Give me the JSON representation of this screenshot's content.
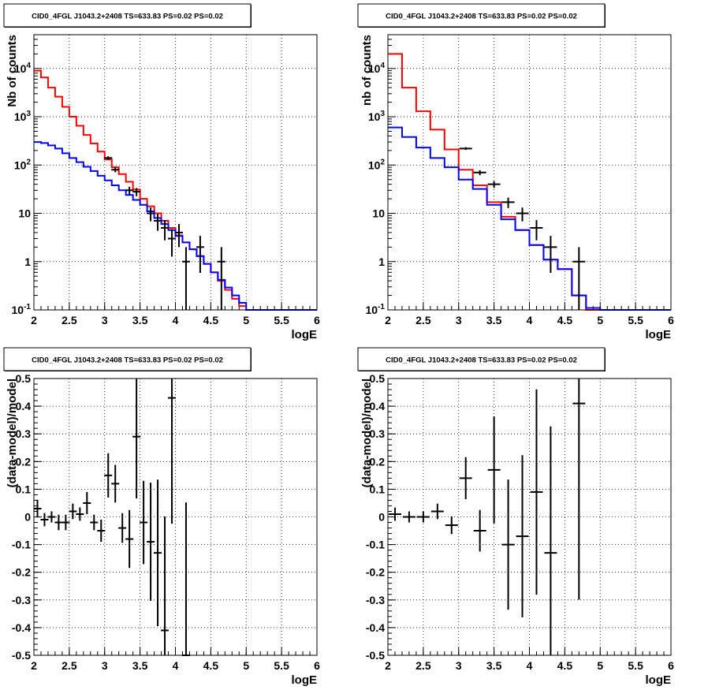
{
  "chart_data": [
    {
      "type": "line",
      "title": "CID0_4FGL J1043.2+2408 TS=633.83 PS=0.02 PS=0.02",
      "xlabel": "logE",
      "ylabel": "Nb of counts",
      "xlim": [
        2,
        6
      ],
      "ylim": [
        0.1,
        50000
      ],
      "yscale": "log",
      "grid": true,
      "xticks": [
        "2",
        "2.5",
        "3",
        "3.5",
        "4",
        "4.5",
        "5",
        "5.5",
        "6"
      ],
      "yticks": [
        "10^-1",
        "1",
        "10",
        "10^2",
        "10^3",
        "10^4"
      ],
      "series": [
        {
          "color": "#ff0000",
          "bin_edges": [
            2.0,
            2.1,
            2.2,
            2.3,
            2.4,
            2.5,
            2.6,
            2.7,
            2.8,
            2.9,
            3.0,
            3.1,
            3.2,
            3.3,
            3.4,
            3.5,
            3.6,
            3.7,
            3.8,
            3.9,
            4.0,
            4.1,
            4.2,
            4.3,
            4.4,
            4.5,
            4.6,
            4.7,
            4.8,
            4.9,
            5.0
          ],
          "values": [
            9000,
            6500,
            4000,
            2600,
            1600,
            1000,
            650,
            420,
            280,
            190,
            130,
            90,
            65,
            45,
            31,
            20,
            14,
            10,
            7,
            5,
            3.5,
            2.5,
            1.8,
            1.3,
            0.9,
            0.6,
            0.4,
            0.26,
            0.17,
            0.12
          ]
        },
        {
          "color": "#0000ff",
          "bin_edges": [
            2.0,
            2.1,
            2.2,
            2.3,
            2.4,
            2.5,
            2.6,
            2.7,
            2.8,
            2.9,
            3.0,
            3.1,
            3.2,
            3.3,
            3.4,
            3.5,
            3.6,
            3.7,
            3.8,
            3.9,
            4.0,
            4.1,
            4.2,
            4.3,
            4.4,
            4.5,
            4.6,
            4.7,
            4.8,
            4.9,
            5.0,
            5.1,
            5.2,
            5.3,
            5.4,
            5.5,
            5.6,
            5.7,
            5.8,
            5.9,
            6.0
          ],
          "values": [
            300,
            285,
            255,
            220,
            175,
            140,
            115,
            92,
            75,
            60,
            48,
            38,
            30,
            24,
            19,
            15,
            11,
            8,
            6,
            4.5,
            3.4,
            2.5,
            1.8,
            1.3,
            0.9,
            0.6,
            0.42,
            0.29,
            0.2,
            0.14,
            0.1,
            0.1,
            0.1,
            0.1,
            0.1,
            0.1,
            0.1,
            0.1,
            0.1,
            0.1
          ]
        },
        {
          "color": "#000000",
          "x": [
            3.05,
            3.15,
            3.35,
            3.45,
            3.65,
            3.75,
            3.85,
            3.95,
            4.05,
            4.15,
            4.35,
            4.65
          ],
          "y": [
            140,
            80,
            30,
            28,
            10,
            7,
            5,
            3,
            4,
            1,
            2,
            1
          ]
        }
      ]
    },
    {
      "type": "line",
      "title": "CID0_4FGL J1043.2+2408 TS=633.83 PS=0.02 PS=0.02",
      "xlabel": "logE",
      "ylabel": "nb of counts",
      "xlim": [
        2,
        6
      ],
      "ylim": [
        0.1,
        50000
      ],
      "yscale": "log",
      "grid": true,
      "xticks": [
        "2",
        "2.5",
        "3",
        "3.5",
        "4",
        "4.5",
        "5",
        "5.5",
        "6"
      ],
      "yticks": [
        "10^-1",
        "1",
        "10",
        "10^2",
        "10^3",
        "10^4"
      ],
      "series": [
        {
          "color": "#ff0000",
          "bin_edges": [
            2.0,
            2.2,
            2.4,
            2.6,
            2.8,
            3.0,
            3.2,
            3.4,
            3.6,
            3.8,
            4.0,
            4.2,
            4.4,
            4.6,
            4.8,
            5.0
          ],
          "values": [
            20000,
            4000,
            1300,
            540,
            210,
            80,
            38,
            17,
            8.5,
            4.5,
            2.2,
            1.1,
            0.7,
            0.2,
            0.1
          ]
        },
        {
          "color": "#0000ff",
          "bin_edges": [
            2.0,
            2.2,
            2.4,
            2.6,
            2.8,
            3.0,
            3.2,
            3.4,
            3.6,
            3.8,
            4.0,
            4.2,
            4.4,
            4.6,
            4.8,
            5.0,
            5.2,
            5.4,
            5.6,
            5.8,
            6.0
          ],
          "values": [
            600,
            380,
            230,
            140,
            90,
            50,
            32,
            15,
            7.5,
            4.5,
            2.2,
            1.1,
            0.7,
            0.2,
            0.11,
            0.1,
            0.1,
            0.1,
            0.1,
            0.1
          ]
        },
        {
          "color": "#000000",
          "x": [
            3.1,
            3.3,
            3.5,
            3.7,
            3.9,
            4.1,
            4.3,
            4.7
          ],
          "y": [
            220,
            70,
            40,
            17,
            10,
            5,
            2,
            1
          ]
        }
      ]
    },
    {
      "type": "scatter",
      "title": "CID0_4FGL J1043.2+2408 TS=633.83 PS=0.02 PS=0.02",
      "xlabel": "logE",
      "ylabel": "(data-model)/model",
      "xlim": [
        2,
        6
      ],
      "ylim": [
        -0.5,
        0.5
      ],
      "grid": true,
      "xticks": [
        "2",
        "2.5",
        "3",
        "3.5",
        "4",
        "4.5",
        "5",
        "5.5",
        "6"
      ],
      "yticks": [
        "-0.5",
        "-0.4",
        "-0.3",
        "-0.2",
        "-0.1",
        "0",
        "0.1",
        "0.2",
        "0.3",
        "0.4",
        "0.5"
      ],
      "series": [
        {
          "color": "#000000",
          "x": [
            2.05,
            2.15,
            2.25,
            2.35,
            2.45,
            2.55,
            2.65,
            2.75,
            2.85,
            2.95,
            3.05,
            3.15,
            3.25,
            3.35,
            3.45,
            3.55,
            3.65,
            3.75,
            3.85,
            3.95,
            4.15
          ],
          "y": [
            0.03,
            -0.01,
            0.0,
            -0.02,
            -0.02,
            0.02,
            0.01,
            0.05,
            -0.02,
            -0.05,
            0.15,
            0.12,
            -0.04,
            -0.08,
            0.29,
            -0.02,
            -0.09,
            -0.13,
            -0.41,
            0.43,
            -0.5
          ]
        }
      ]
    },
    {
      "type": "scatter",
      "title": "CID0_4FGL J1043.2+2408 TS=633.83 PS=0.02 PS=0.02",
      "xlabel": "logE",
      "ylabel": "(data-model)/model",
      "xlim": [
        2,
        6
      ],
      "ylim": [
        -0.5,
        0.5
      ],
      "grid": true,
      "xticks": [
        "2",
        "2.5",
        "3",
        "3.5",
        "4",
        "4.5",
        "5",
        "5.5",
        "6"
      ],
      "yticks": [
        "-0.5",
        "-0.4",
        "-0.3",
        "-0.2",
        "-0.1",
        "0",
        "0.1",
        "0.2",
        "0.3",
        "0.4",
        "0.5"
      ],
      "series": [
        {
          "color": "#000000",
          "x": [
            2.1,
            2.3,
            2.5,
            2.7,
            2.9,
            3.1,
            3.3,
            3.5,
            3.7,
            3.9,
            4.1,
            4.3,
            4.7
          ],
          "y": [
            0.01,
            0.0,
            0.0,
            0.02,
            -0.03,
            0.14,
            -0.05,
            0.17,
            -0.1,
            -0.07,
            0.09,
            -0.13,
            0.41
          ]
        }
      ]
    }
  ]
}
